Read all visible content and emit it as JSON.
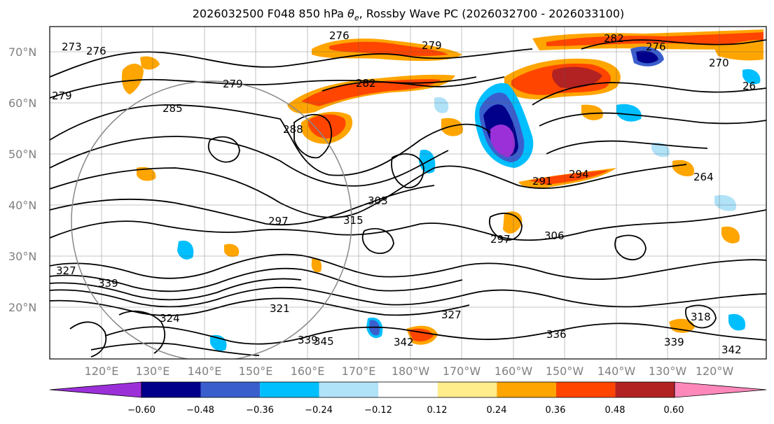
{
  "title_parts": {
    "prefix": "2026032500 F048 850 hPa ",
    "theta": "θ",
    "theta_sub": "e",
    "suffix": ", Rossby Wave PC (2026032700 - 2026033100)"
  },
  "lat_labels": [
    "70°N",
    "60°N",
    "50°N",
    "40°N",
    "30°N",
    "20°N"
  ],
  "lon_labels": [
    "120°E",
    "130°E",
    "140°E",
    "150°E",
    "160°E",
    "170°E",
    "180°W",
    "170°W",
    "160°W",
    "150°W",
    "140°W",
    "130°W",
    "120°W"
  ],
  "contour_labels": [
    "273",
    "276",
    "276",
    "282",
    "276",
    "279",
    "279",
    "282",
    "285",
    "288",
    "279",
    "270",
    "26",
    "303",
    "297",
    "315",
    "297",
    "306",
    "324",
    "321",
    "339",
    "345",
    "342",
    "336",
    "327",
    "318",
    "342",
    "339",
    "291",
    "294",
    "264",
    "327",
    "339"
  ],
  "colorbar": {
    "ticks": [
      "−0.60",
      "−0.48",
      "−0.36",
      "−0.24",
      "−0.12",
      "0.12",
      "0.24",
      "0.36",
      "0.48",
      "0.60"
    ],
    "colors": [
      "#9b30d9",
      "#00008b",
      "#3a5fcd",
      "#00bfff",
      "#b0e2f8",
      "#ffffff",
      "#ffec8b",
      "#ffa500",
      "#ff4500",
      "#b22222",
      "#ff88bb"
    ]
  }
}
